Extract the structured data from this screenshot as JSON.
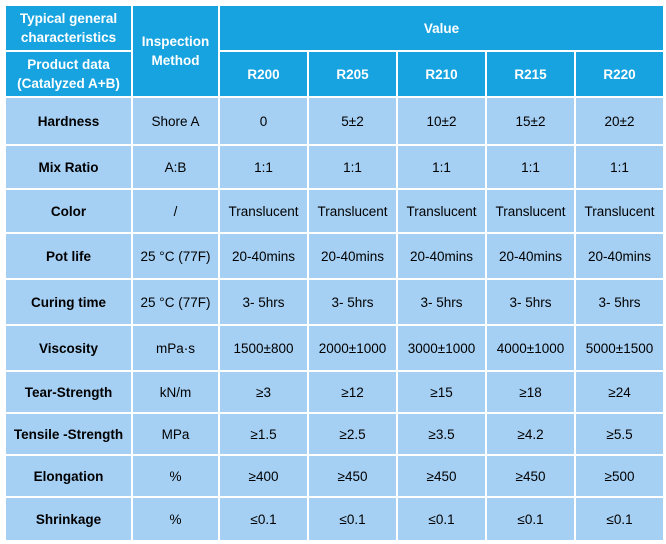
{
  "table": {
    "header": {
      "typical": "Typical general characteristics",
      "product_data": "Product data (Catalyzed A+B)",
      "method": "Inspection Method",
      "value": "Value",
      "grades": [
        "R200",
        "R205",
        "R210",
        "R215",
        "R220"
      ]
    },
    "rows": [
      {
        "label": "Hardness",
        "method": "Shore A",
        "values": [
          "0",
          "5±2",
          "10±2",
          "15±2",
          "20±2"
        ]
      },
      {
        "label": "Mix Ratio",
        "method": "A:B",
        "values": [
          "1:1",
          "1:1",
          "1:1",
          "1:1",
          "1:1"
        ]
      },
      {
        "label": "Color",
        "method": "/",
        "values": [
          "Translucent",
          "Translucent",
          "Translucent",
          "Translucent",
          "Translucent"
        ]
      },
      {
        "label": "Pot life",
        "method": "25 °C (77F)",
        "values": [
          "20-40mins",
          "20-40mins",
          "20-40mins",
          "20-40mins",
          "20-40mins"
        ]
      },
      {
        "label": "Curing time",
        "method": "25 °C (77F)",
        "values": [
          "3- 5hrs",
          "3- 5hrs",
          "3- 5hrs",
          "3- 5hrs",
          "3- 5hrs"
        ]
      },
      {
        "label": "Viscosity",
        "method": "mPa·s",
        "values": [
          "1500±800",
          "2000±1000",
          "3000±1000",
          "4000±1000",
          "5000±1500"
        ]
      },
      {
        "label": "Tear-Strength",
        "method": "kN/m",
        "values": [
          "≥3",
          "≥12",
          "≥15",
          "≥18",
          "≥24"
        ]
      },
      {
        "label": "Tensile -Strength",
        "method": "MPa",
        "values": [
          "≥1.5",
          "≥2.5",
          "≥3.5",
          "≥4.2",
          "≥5.5"
        ]
      },
      {
        "label": "Elongation",
        "method": "%",
        "values": [
          "≥400",
          "≥450",
          "≥450",
          "≥450",
          "≥500"
        ]
      },
      {
        "label": "Shrinkage",
        "method": "%",
        "values": [
          "≤0.1",
          "≤0.1",
          "≤0.1",
          "≤0.1",
          "≤0.1"
        ]
      }
    ]
  }
}
